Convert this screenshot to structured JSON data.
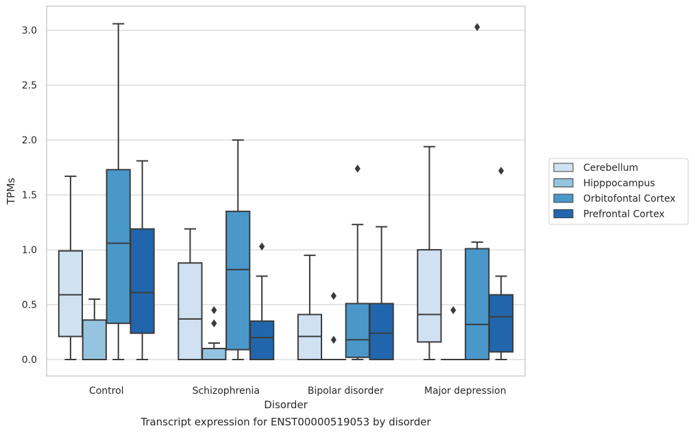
{
  "chart_data": {
    "type": "box",
    "title": "",
    "caption": "Transcript expression for ENST00000519053 by disorder",
    "xlabel": "Disorder",
    "ylabel": "TPMs",
    "ylim": [
      -0.15,
      3.22
    ],
    "yticks": [
      0.0,
      0.5,
      1.0,
      1.5,
      2.0,
      2.5,
      3.0
    ],
    "ytick_labels": [
      "0.0",
      "0.5",
      "1.0",
      "1.5",
      "2.0",
      "2.5",
      "3.0"
    ],
    "grid": "horizontal",
    "legend_position": "right",
    "categories": [
      "Control",
      "Schizophrenia",
      "Bipolar disorder",
      "Major depression"
    ],
    "series": [
      {
        "name": "Cerebellum",
        "color": "#d0e1f2",
        "boxes": [
          {
            "min": 0.0,
            "q1": 0.21,
            "median": 0.59,
            "q3": 0.99,
            "max": 1.67,
            "outliers": []
          },
          {
            "min": 0.0,
            "q1": 0.0,
            "median": 0.37,
            "q3": 0.88,
            "max": 1.19,
            "outliers": []
          },
          {
            "min": 0.0,
            "q1": 0.0,
            "median": 0.21,
            "q3": 0.41,
            "max": 0.95,
            "outliers": []
          },
          {
            "min": 0.0,
            "q1": 0.16,
            "median": 0.41,
            "q3": 1.0,
            "max": 1.94,
            "outliers": []
          }
        ]
      },
      {
        "name": "Hipppocampus",
        "color": "#94c4df",
        "boxes": [
          {
            "min": 0.0,
            "q1": 0.0,
            "median": 0.0,
            "q3": 0.36,
            "max": 0.55,
            "outliers": []
          },
          {
            "min": 0.0,
            "q1": 0.0,
            "median": 0.0,
            "q3": 0.1,
            "max": 0.15,
            "outliers": [
              0.33,
              0.45
            ]
          },
          {
            "min": 0.0,
            "q1": 0.0,
            "median": 0.0,
            "q3": 0.0,
            "max": 0.0,
            "outliers": [
              0.18,
              0.58
            ]
          },
          {
            "min": 0.0,
            "q1": 0.0,
            "median": 0.0,
            "q3": 0.0,
            "max": 0.0,
            "outliers": [
              0.45
            ]
          }
        ]
      },
      {
        "name": "Orbitofontal Cortex",
        "color": "#4a98c9",
        "boxes": [
          {
            "min": 0.0,
            "q1": 0.33,
            "median": 1.06,
            "q3": 1.73,
            "max": 3.06,
            "outliers": []
          },
          {
            "min": 0.0,
            "q1": 0.09,
            "median": 0.82,
            "q3": 1.35,
            "max": 2.0,
            "outliers": []
          },
          {
            "min": 0.0,
            "q1": 0.02,
            "median": 0.18,
            "q3": 0.51,
            "max": 1.23,
            "outliers": [
              1.74
            ]
          },
          {
            "min": 0.0,
            "q1": 0.0,
            "median": 0.32,
            "q3": 1.01,
            "max": 1.07,
            "outliers": [
              3.03
            ]
          }
        ]
      },
      {
        "name": "Prefrontal Cortex",
        "color": "#2166ac",
        "boxes": [
          {
            "min": 0.0,
            "q1": 0.24,
            "median": 0.61,
            "q3": 1.19,
            "max": 1.81,
            "outliers": []
          },
          {
            "min": 0.0,
            "q1": 0.0,
            "median": 0.2,
            "q3": 0.35,
            "max": 0.76,
            "outliers": [
              1.03
            ]
          },
          {
            "min": 0.0,
            "q1": 0.0,
            "median": 0.24,
            "q3": 0.51,
            "max": 1.21,
            "outliers": []
          },
          {
            "min": 0.0,
            "q1": 0.07,
            "median": 0.39,
            "q3": 0.59,
            "max": 0.76,
            "outliers": [
              1.72
            ]
          }
        ]
      }
    ],
    "colors": {
      "grid": "#cccccc",
      "frame": "#cccccc",
      "box_edge": "#3a3a3a"
    }
  }
}
